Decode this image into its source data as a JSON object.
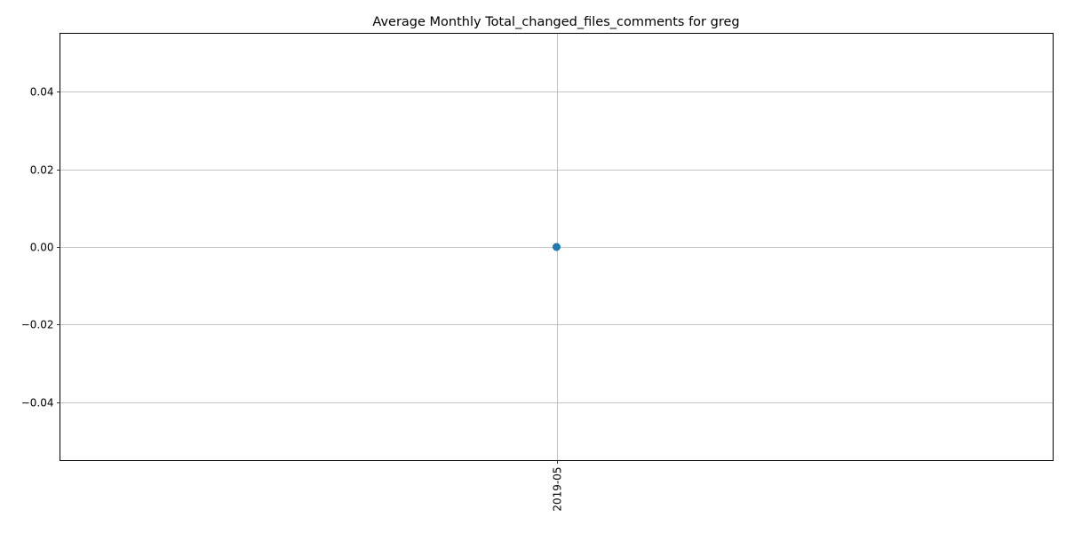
{
  "chart_data": {
    "type": "line",
    "title": "Average Monthly Total_changed_files_comments for greg",
    "xlabel": "",
    "ylabel": "",
    "categories": [
      "2019-05"
    ],
    "series": [
      {
        "values": [
          0.0
        ],
        "color": "#1f77b4",
        "marker": "circle"
      }
    ],
    "ylim": [
      -0.055,
      0.055
    ],
    "yticks": [
      -0.04,
      -0.02,
      0.0,
      0.02,
      0.04
    ],
    "ytick_labels": [
      "−0.04",
      "−0.02",
      "0.00",
      "0.02",
      "0.04"
    ],
    "xtick_rotation": "vertical",
    "grid": true,
    "legend": "none"
  }
}
